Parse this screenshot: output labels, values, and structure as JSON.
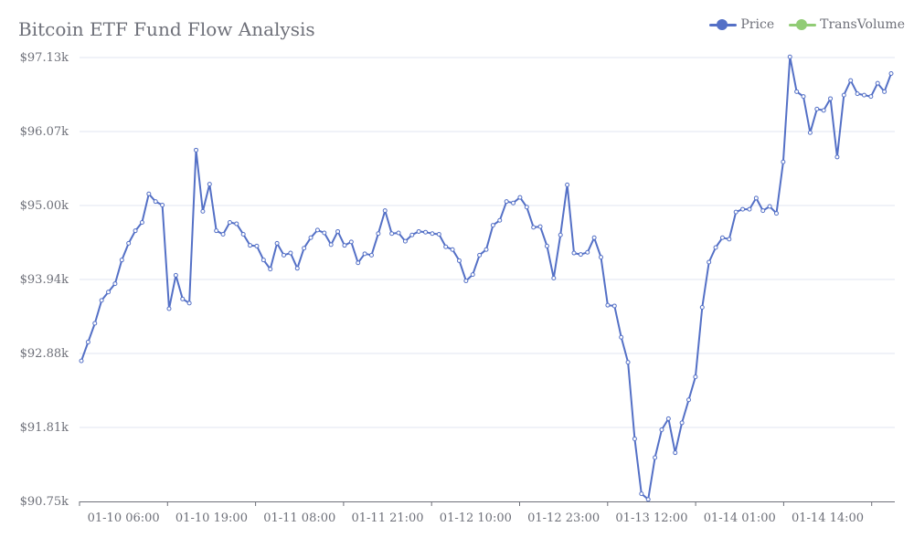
{
  "chart_data": {
    "type": "line",
    "title": "Bitcoin ETF Fund Flow Analysis",
    "legend": {
      "placement": "top-right",
      "entries": [
        {
          "name": "Price",
          "color": "#5470c6"
        },
        {
          "name": "TransVolume",
          "color": "#91cc75"
        }
      ]
    },
    "y_tick_labels": [
      "$90.75k",
      "$91.81k",
      "$92.88k",
      "$93.94k",
      "$95.00k",
      "$96.07k",
      "$97.13k"
    ],
    "ylim": [
      90750,
      97130
    ],
    "x_tick_labels": [
      "01-10 06:00",
      "01-10 19:00",
      "01-11 08:00",
      "01-11 21:00",
      "01-12 10:00",
      "01-12 23:00",
      "01-13 12:00",
      "01-14 01:00",
      "01-14 14:00"
    ],
    "grid": "horizontal",
    "series": [
      {
        "name": "Price",
        "color": "#5470c6",
        "values": [
          92770,
          93040,
          93310,
          93640,
          93760,
          93880,
          94220,
          94460,
          94640,
          94760,
          95170,
          95060,
          95010,
          93520,
          94000,
          93660,
          93600,
          95800,
          94920,
          95310,
          94640,
          94590,
          94760,
          94740,
          94590,
          94430,
          94420,
          94220,
          94090,
          94460,
          94290,
          94320,
          94100,
          94390,
          94540,
          94650,
          94610,
          94440,
          94630,
          94430,
          94480,
          94180,
          94310,
          94290,
          94600,
          94930,
          94600,
          94610,
          94490,
          94580,
          94630,
          94620,
          94600,
          94590,
          94410,
          94370,
          94210,
          93920,
          94010,
          94290,
          94370,
          94720,
          94790,
          95060,
          95040,
          95120,
          94980,
          94690,
          94700,
          94420,
          93960,
          94580,
          95300,
          94320,
          94300,
          94330,
          94540,
          94260,
          93570,
          93560,
          93110,
          92750,
          91650,
          90860,
          90780,
          91380,
          91780,
          91940,
          91450,
          91880,
          92210,
          92540,
          93540,
          94190,
          94400,
          94540,
          94520,
          94910,
          94950,
          94950,
          95110,
          94930,
          94990,
          94890,
          95630,
          97140,
          96640,
          96570,
          96050,
          96390,
          96370,
          96540,
          95700,
          96590,
          96800,
          96610,
          96590,
          96570,
          96760,
          96640,
          96900
        ]
      }
    ]
  }
}
